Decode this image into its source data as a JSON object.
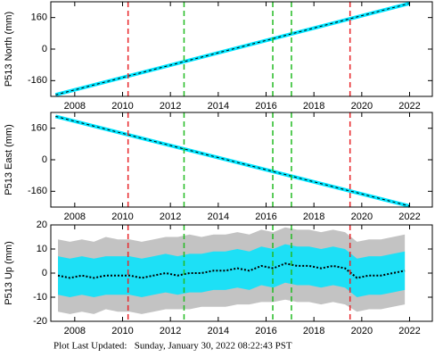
{
  "chart_data": [
    {
      "type": "line",
      "y_label": "P513 North (mm)",
      "x": [
        2007.2,
        2022.0
      ],
      "values": [
        -232,
        232
      ],
      "color": "#00e5ff",
      "line_color": "#000000",
      "xlim": [
        2007,
        2022.95
      ],
      "xticks": [
        2008,
        2010,
        2012,
        2014,
        2016,
        2018,
        2020,
        2022
      ],
      "ylim": [
        -240,
        240
      ],
      "yticks": [
        -160,
        0,
        160
      ],
      "vlines": [
        {
          "x": 2010.23,
          "color": "#e8262a"
        },
        {
          "x": 2012.57,
          "color": "#22bb22"
        },
        {
          "x": 2016.28,
          "color": "#22bb22"
        },
        {
          "x": 2017.06,
          "color": "#22bb22"
        },
        {
          "x": 2019.51,
          "color": "#e8262a"
        }
      ]
    },
    {
      "type": "line",
      "y_label": "P513 East (mm)",
      "x": [
        2007.2,
        2022.0
      ],
      "values": [
        220,
        -235
      ],
      "color": "#00e5ff",
      "line_color": "#000000",
      "xlim": [
        2007,
        2022.95
      ],
      "xticks": [
        2008,
        2010,
        2012,
        2014,
        2016,
        2018,
        2020,
        2022
      ],
      "ylim": [
        -240,
        240
      ],
      "yticks": [
        -160,
        0,
        160
      ],
      "vlines": [
        {
          "x": 2010.23,
          "color": "#e8262a"
        },
        {
          "x": 2012.57,
          "color": "#22bb22"
        },
        {
          "x": 2016.28,
          "color": "#22bb22"
        },
        {
          "x": 2017.06,
          "color": "#22bb22"
        },
        {
          "x": 2019.51,
          "color": "#e8262a"
        }
      ]
    },
    {
      "type": "band",
      "y_label": "P513 Up (mm)",
      "x": [
        2007.3,
        2007.8,
        2008.3,
        2008.8,
        2009.3,
        2009.8,
        2010.3,
        2010.8,
        2011.3,
        2011.8,
        2012.3,
        2012.8,
        2013.3,
        2013.8,
        2014.3,
        2014.8,
        2015.3,
        2015.8,
        2016.3,
        2016.8,
        2017.3,
        2017.8,
        2018.3,
        2018.8,
        2019.3,
        2019.8,
        2020.3,
        2020.8,
        2021.3,
        2021.8
      ],
      "values": [
        -1,
        -2,
        -1,
        -2,
        -1,
        -1,
        -1,
        -2,
        -1,
        0,
        -1,
        0,
        0,
        1,
        1,
        2,
        1,
        3,
        2,
        4,
        3,
        3,
        2,
        3,
        2,
        -2,
        -1,
        -1,
        0,
        1
      ],
      "band_low": [
        -9,
        -10,
        -9,
        -10,
        -9,
        -9,
        -9,
        -10,
        -9,
        -8,
        -9,
        -8,
        -8,
        -7,
        -7,
        -6,
        -7,
        -5,
        -6,
        -4,
        -5,
        -5,
        -6,
        -5,
        -6,
        -10,
        -9,
        -9,
        -8,
        -7
      ],
      "band_high": [
        7,
        6,
        7,
        6,
        7,
        7,
        7,
        6,
        7,
        8,
        7,
        8,
        8,
        9,
        9,
        10,
        9,
        11,
        10,
        12,
        11,
        11,
        10,
        11,
        10,
        6,
        7,
        7,
        8,
        9
      ],
      "error_low": [
        -16,
        -17,
        -16,
        -17,
        -15,
        -16,
        -16,
        -17,
        -16,
        -15,
        -15,
        -15,
        -14,
        -14,
        -14,
        -13,
        -13,
        -12,
        -12,
        -11,
        -12,
        -12,
        -13,
        -12,
        -13,
        -16,
        -15,
        -15,
        -14,
        -13
      ],
      "error_high": [
        14,
        13,
        14,
        13,
        15,
        14,
        14,
        13,
        14,
        15,
        15,
        16,
        15,
        16,
        16,
        17,
        16,
        18,
        17,
        19,
        18,
        18,
        17,
        18,
        17,
        13,
        14,
        14,
        15,
        16
      ],
      "color": "#00e5ff",
      "error_color": "#b8b8b8",
      "line_color": "#000000",
      "xlim": [
        2007,
        2022.95
      ],
      "xticks": [
        2008,
        2010,
        2012,
        2014,
        2016,
        2018,
        2020,
        2022
      ],
      "ylim": [
        -20,
        20
      ],
      "yticks": [
        -20,
        -10,
        0,
        10,
        20
      ],
      "vlines": [
        {
          "x": 2010.23,
          "color": "#e8262a"
        },
        {
          "x": 2012.57,
          "color": "#22bb22"
        },
        {
          "x": 2016.28,
          "color": "#22bb22"
        },
        {
          "x": 2017.06,
          "color": "#22bb22"
        },
        {
          "x": 2019.51,
          "color": "#e8262a"
        }
      ]
    }
  ],
  "footer": "Plot Last Updated:   Sunday, January 30, 2022 08:22:43 PST"
}
